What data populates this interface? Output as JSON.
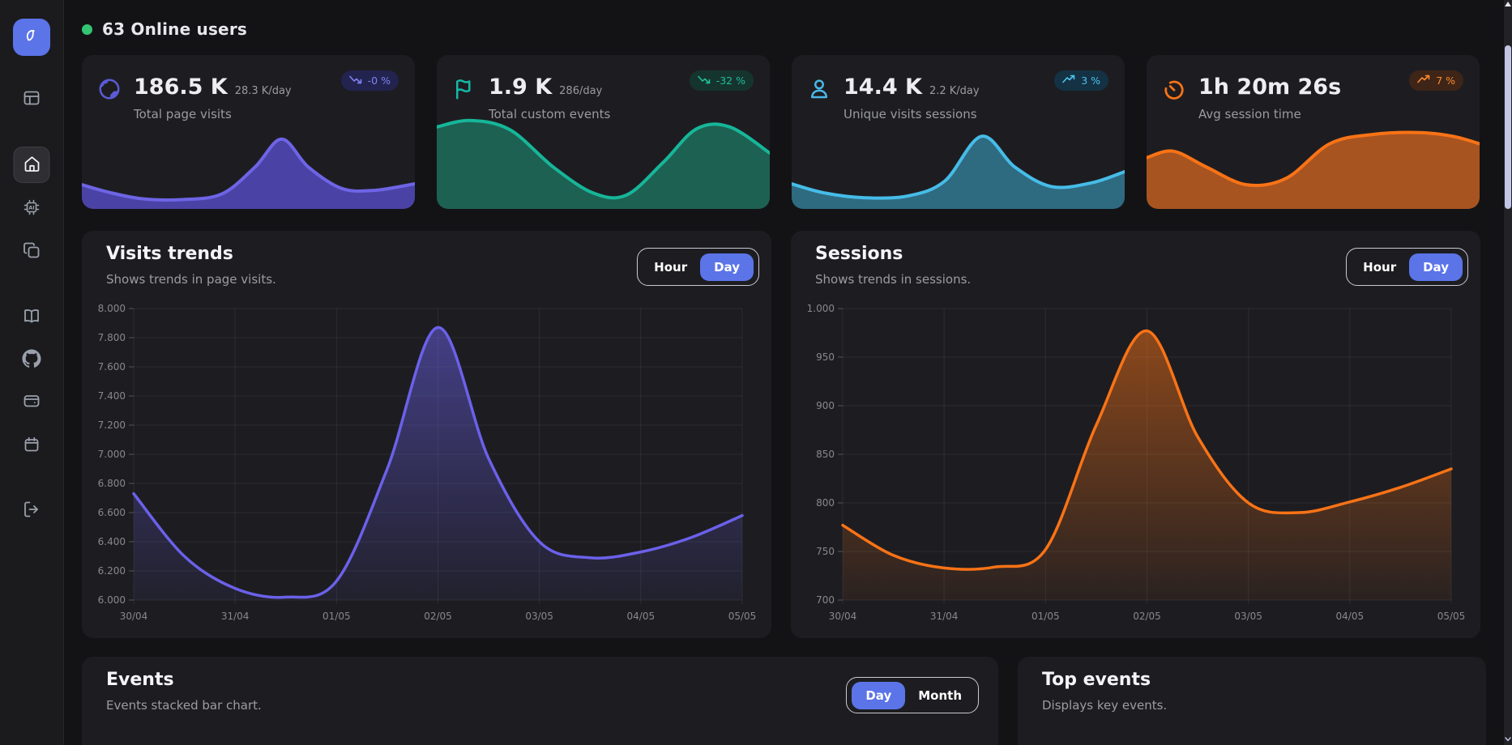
{
  "app": {
    "accent": "#5b74e8",
    "background": "#131316",
    "panel_bg": "#1d1d21"
  },
  "header": {
    "label": "63 Online users",
    "dot_color": "#34c474"
  },
  "sidebar": {
    "items": [
      "dashboard",
      "home",
      "ai-assistant",
      "copy",
      "docs",
      "github",
      "wallet",
      "calendar",
      "logout"
    ],
    "active_item": "home"
  },
  "cards": [
    {
      "icon": "globe-icon",
      "accent": "#5b5bd6",
      "value": "186.5 K",
      "rate": "28.3 K/day",
      "label": "Total page visits",
      "badge": {
        "text": "-0 %",
        "trend": "down",
        "bg": "#232350",
        "color": "#8183f4"
      },
      "spark": {
        "line": "#6e64e6",
        "fill": "#4a43a5",
        "points": [
          [
            0,
            0.26
          ],
          [
            8,
            0.18
          ],
          [
            18,
            0.11
          ],
          [
            30,
            0.1
          ],
          [
            42,
            0.16
          ],
          [
            52,
            0.45
          ],
          [
            60,
            0.75
          ],
          [
            68,
            0.45
          ],
          [
            78,
            0.22
          ],
          [
            88,
            0.2
          ],
          [
            100,
            0.27
          ]
        ]
      }
    },
    {
      "icon": "flag-icon",
      "accent": "#14b8a6",
      "value": "1.9 K",
      "rate": "286/day",
      "label": "Total custom events",
      "badge": {
        "text": "-32 %",
        "trend": "down",
        "bg": "#16342e",
        "color": "#1fbf9c"
      },
      "spark": {
        "line": "#16b699",
        "fill": "#1d6152",
        "points": [
          [
            0,
            0.88
          ],
          [
            10,
            0.95
          ],
          [
            22,
            0.85
          ],
          [
            35,
            0.45
          ],
          [
            47,
            0.17
          ],
          [
            57,
            0.15
          ],
          [
            68,
            0.5
          ],
          [
            78,
            0.86
          ],
          [
            88,
            0.88
          ],
          [
            100,
            0.6
          ]
        ]
      }
    },
    {
      "icon": "user-icon",
      "accent": "#4ab8e8",
      "value": "14.4 K",
      "rate": "2.2 K/day",
      "label": "Unique visits sessions",
      "badge": {
        "text": "3 %",
        "trend": "up",
        "bg": "#143243",
        "color": "#4dc4f0"
      },
      "spark": {
        "line": "#46bce8",
        "fill": "#2e6a80",
        "points": [
          [
            0,
            0.27
          ],
          [
            10,
            0.17
          ],
          [
            22,
            0.12
          ],
          [
            35,
            0.14
          ],
          [
            46,
            0.3
          ],
          [
            57,
            0.78
          ],
          [
            67,
            0.45
          ],
          [
            78,
            0.24
          ],
          [
            90,
            0.28
          ],
          [
            100,
            0.4
          ]
        ]
      }
    },
    {
      "icon": "timer-icon",
      "accent": "#f97316",
      "value": "1h 20m 26s",
      "rate": "",
      "label": "Avg session time",
      "badge": {
        "text": "7 %",
        "trend": "up",
        "bg": "#3f2517",
        "color": "#fb8c2e"
      },
      "spark": {
        "line": "#f97316",
        "fill": "#a85420",
        "points": [
          [
            0,
            0.55
          ],
          [
            8,
            0.62
          ],
          [
            18,
            0.45
          ],
          [
            30,
            0.26
          ],
          [
            42,
            0.33
          ],
          [
            55,
            0.7
          ],
          [
            68,
            0.8
          ],
          [
            82,
            0.82
          ],
          [
            92,
            0.78
          ],
          [
            100,
            0.7
          ]
        ]
      }
    }
  ],
  "panels": {
    "visits": {
      "title": "Visits trends",
      "subtitle": "Shows trends in page visits.",
      "toggle": {
        "options": [
          "Hour",
          "Day"
        ],
        "active": "Day"
      }
    },
    "sessions": {
      "title": "Sessions",
      "subtitle": "Shows trends in sessions.",
      "toggle": {
        "options": [
          "Hour",
          "Day"
        ],
        "active": "Day"
      }
    },
    "events": {
      "title": "Events",
      "subtitle": "Events stacked bar chart.",
      "toggle": {
        "options": [
          "Day",
          "Month"
        ],
        "active": "Day"
      }
    },
    "top_events": {
      "title": "Top events",
      "subtitle": "Displays key events."
    }
  },
  "chart_data": [
    {
      "id": "visits_trends",
      "type": "area",
      "title": "Visits trends",
      "categories": [
        "30/04",
        "31/04",
        "01/05",
        "02/05",
        "03/05",
        "04/05",
        "05/05"
      ],
      "ytick_labels": [
        "8.000",
        "7.800",
        "7.600",
        "7.400",
        "7.200",
        "7.000",
        "6.800",
        "6.600",
        "6.400",
        "6.200",
        "6.000"
      ],
      "ytick_values": [
        8000,
        7800,
        7600,
        7400,
        7200,
        7000,
        6800,
        6600,
        6400,
        6200,
        6000
      ],
      "ylim": [
        6000,
        8000
      ],
      "grid": true,
      "legend": false,
      "line_color": "#6b61ea",
      "fill_color": "#6b61ea",
      "points": [
        [
          0,
          6730
        ],
        [
          0.5,
          6300
        ],
        [
          1,
          6080
        ],
        [
          1.5,
          6020
        ],
        [
          2,
          6130
        ],
        [
          2.5,
          6900
        ],
        [
          3,
          7870
        ],
        [
          3.5,
          6970
        ],
        [
          4,
          6400
        ],
        [
          4.5,
          6290
        ],
        [
          5,
          6330
        ],
        [
          5.5,
          6430
        ],
        [
          6,
          6580
        ]
      ]
    },
    {
      "id": "sessions",
      "type": "area",
      "title": "Sessions",
      "categories": [
        "30/04",
        "31/04",
        "01/05",
        "02/05",
        "03/05",
        "04/05",
        "05/05"
      ],
      "ytick_labels": [
        "1.000",
        "950",
        "900",
        "850",
        "800",
        "750",
        "700"
      ],
      "ytick_values": [
        1000,
        950,
        900,
        850,
        800,
        750,
        700
      ],
      "ylim": [
        700,
        1000
      ],
      "grid": true,
      "legend": false,
      "line_color": "#f97316",
      "fill_color": "#f97316",
      "points": [
        [
          0,
          777
        ],
        [
          0.5,
          746
        ],
        [
          1,
          733
        ],
        [
          1.5,
          734
        ],
        [
          2,
          752
        ],
        [
          2.5,
          880
        ],
        [
          3,
          977
        ],
        [
          3.5,
          868
        ],
        [
          4,
          800
        ],
        [
          4.5,
          790
        ],
        [
          5,
          801
        ],
        [
          5.5,
          816
        ],
        [
          6,
          835
        ]
      ]
    }
  ]
}
